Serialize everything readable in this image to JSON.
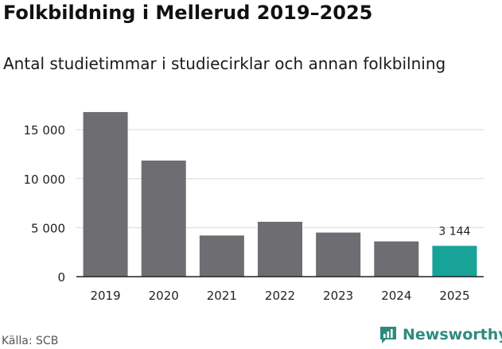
{
  "header": {
    "title": "Folkbildning i Mellerud 2019–2025",
    "subtitle": "Antal studietimmar i studiecirklar och annan folkbilning"
  },
  "footer": {
    "source": "Källa: SCB",
    "brand": "Newsworthy",
    "brand_icon": "newsworthy-logo-icon"
  },
  "colors": {
    "bar_default": "#6e6d72",
    "bar_highlight": "#17a398",
    "grid": "#d9d9d9",
    "axis": "#222222",
    "brand": "#2e8b7e"
  },
  "chart_data": {
    "type": "bar",
    "title": "Folkbildning i Mellerud 2019–2025",
    "subtitle": "Antal studietimmar i studiecirklar och annan folkbilning",
    "xlabel": "",
    "ylabel": "",
    "categories": [
      "2019",
      "2020",
      "2021",
      "2022",
      "2023",
      "2024",
      "2025"
    ],
    "values": [
      16800,
      11850,
      4200,
      5600,
      4500,
      3600,
      3144
    ],
    "highlight_index": 6,
    "data_labels": [
      {
        "index": 6,
        "text": "3 144"
      }
    ],
    "ylim": [
      0,
      18500
    ],
    "yticks": [
      0,
      5000,
      10000,
      15000
    ],
    "ytick_labels": [
      "0",
      "5 000",
      "10 000",
      "15 000"
    ],
    "grid": true,
    "legend": "none"
  }
}
